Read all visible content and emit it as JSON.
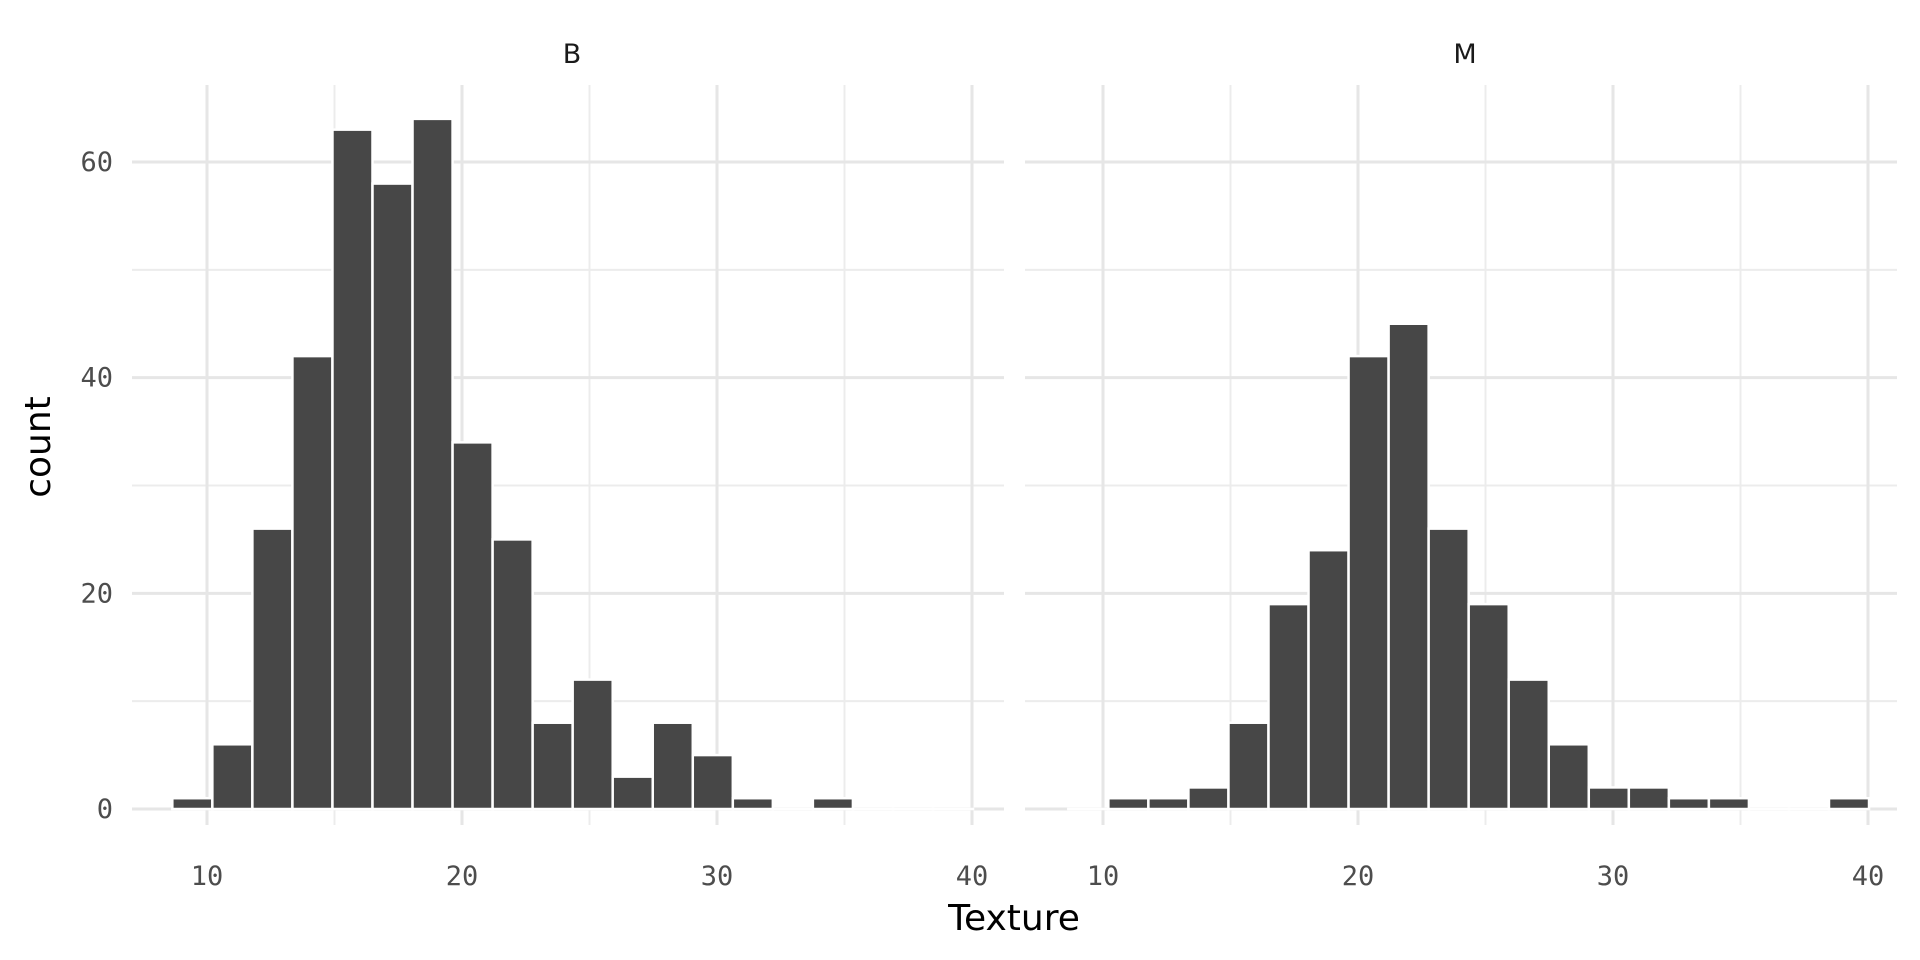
{
  "chart_data": {
    "type": "bar",
    "subtype": "faceted-histogram",
    "xlabel": "Texture",
    "ylabel": "count",
    "xlim": [
      7,
      41
    ],
    "ylim": [
      -1.5,
      68
    ],
    "x_ticks": [
      10,
      20,
      30,
      40
    ],
    "x_tick_labels": [
      "10",
      "20",
      "30",
      "40"
    ],
    "y_ticks": [
      0,
      20,
      40,
      60
    ],
    "y_tick_labels": [
      "0",
      "20",
      "40",
      "60"
    ],
    "y_minor_ticks": [
      10,
      30,
      50
    ],
    "x_minor_ticks": [
      15,
      25,
      35
    ],
    "bin_width": 1.57,
    "bin_start": 8.64,
    "bar_color": "#474747",
    "grid": true,
    "facets": [
      {
        "label": "B",
        "counts": [
          1,
          6,
          26,
          42,
          63,
          58,
          64,
          34,
          25,
          8,
          12,
          3,
          8,
          5,
          1,
          0,
          1,
          0,
          0,
          0
        ]
      },
      {
        "label": "M",
        "counts": [
          0,
          1,
          1,
          2,
          8,
          19,
          24,
          42,
          45,
          26,
          19,
          12,
          6,
          2,
          2,
          1,
          1,
          0,
          0,
          1
        ]
      }
    ]
  }
}
